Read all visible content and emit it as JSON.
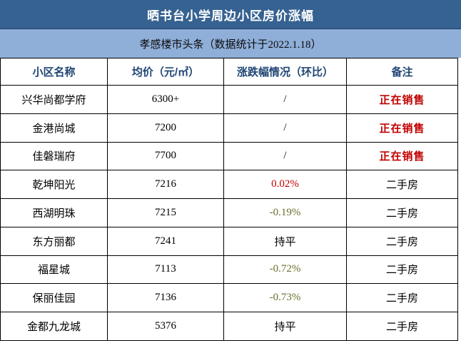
{
  "chart_data": {
    "type": "table",
    "title": "晒书台小学周边小区房价涨幅",
    "subtitle": "孝感楼市头条（数据统计于2022.1.18）",
    "columns": [
      "小区名称",
      "均价（元/㎡）",
      "涨跌幅情况（环比）",
      "备注"
    ],
    "rows": [
      {
        "name": "兴华尚都学府",
        "avg_price": "6300+",
        "change": "/",
        "change_color": "black",
        "note": "正在销售",
        "note_color": "red",
        "note_bold": true
      },
      {
        "name": "金港尚城",
        "avg_price": "7200",
        "change": "/",
        "change_color": "black",
        "note": "正在销售",
        "note_color": "red",
        "note_bold": true
      },
      {
        "name": "佳磐瑞府",
        "avg_price": "7700",
        "change": "/",
        "change_color": "black",
        "note": "正在销售",
        "note_color": "red",
        "note_bold": true
      },
      {
        "name": "乾坤阳光",
        "avg_price": "7216",
        "change": "0.02%",
        "change_color": "red",
        "note": "二手房",
        "note_color": "black",
        "note_bold": false
      },
      {
        "name": "西湖明珠",
        "avg_price": "7215",
        "change": "-0.19%",
        "change_color": "olive",
        "note": "二手房",
        "note_color": "black",
        "note_bold": false
      },
      {
        "name": "东方丽都",
        "avg_price": "7241",
        "change": "持平",
        "change_color": "black",
        "note": "二手房",
        "note_color": "black",
        "note_bold": false
      },
      {
        "name": "福星城",
        "avg_price": "7113",
        "change": "-0.72%",
        "change_color": "olive",
        "note": "二手房",
        "note_color": "black",
        "note_bold": false
      },
      {
        "name": "保丽佳园",
        "avg_price": "7136",
        "change": "-0.73%",
        "change_color": "olive",
        "note": "二手房",
        "note_color": "black",
        "note_bold": false
      },
      {
        "name": "金都九龙城",
        "avg_price": "5376",
        "change": "持平",
        "change_color": "black",
        "note": "二手房",
        "note_color": "black",
        "note_bold": false
      }
    ]
  },
  "colors": {
    "title_bg": "#366291",
    "subtitle_bg": "#8fafd9",
    "header_text": "#1f4574",
    "red": "#c00000",
    "olive": "#6e6f2e",
    "black": "#000000",
    "border": "#000000"
  }
}
